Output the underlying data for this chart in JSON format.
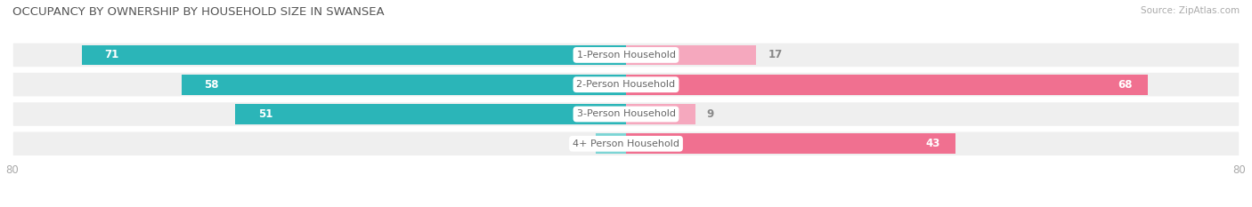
{
  "title": "OCCUPANCY BY OWNERSHIP BY HOUSEHOLD SIZE IN SWANSEA",
  "source": "Source: ZipAtlas.com",
  "categories": [
    "1-Person Household",
    "2-Person Household",
    "3-Person Household",
    "4+ Person Household"
  ],
  "owner_values": [
    71,
    58,
    51,
    4
  ],
  "renter_values": [
    17,
    68,
    9,
    43
  ],
  "max_val": 80,
  "owner_color": "#2bb5b8",
  "renter_color_strong": "#f07090",
  "renter_color_light": "#f5a8be",
  "row_bg_color": "#efefef",
  "title_color": "#555555",
  "axis_label_color": "#aaaaaa",
  "category_text_color": "#666666",
  "value_text_color_inside": "#ffffff",
  "value_text_color_outside": "#888888",
  "owner_light_color": "#7dd5d5",
  "bar_height": 0.68,
  "title_fontsize": 9.5,
  "source_fontsize": 7.5,
  "bar_label_fontsize": 8.5,
  "category_fontsize": 8,
  "axis_fontsize": 8.5,
  "legend_fontsize": 8.5
}
